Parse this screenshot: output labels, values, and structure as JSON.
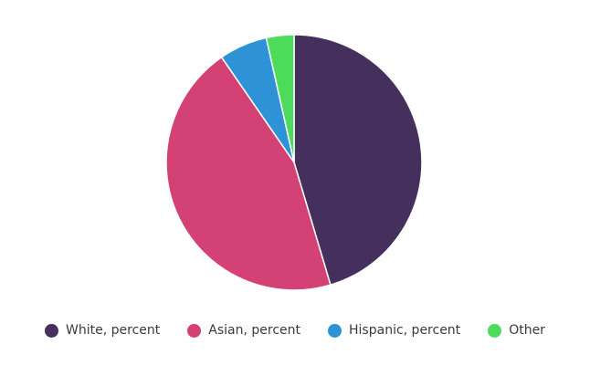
{
  "chart_data": {
    "type": "pie",
    "title": "",
    "legend_position": "bottom",
    "slices": [
      {
        "label": "White, percent",
        "value": 45.4,
        "color": "#452F5C"
      },
      {
        "label": "Asian, percent",
        "value": 45.0,
        "color": "#D44174"
      },
      {
        "label": "Hispanic, percent",
        "value": 6.1,
        "color": "#2E92D6"
      },
      {
        "label": "Other",
        "value": 3.5,
        "color": "#4CDB5A"
      }
    ]
  }
}
